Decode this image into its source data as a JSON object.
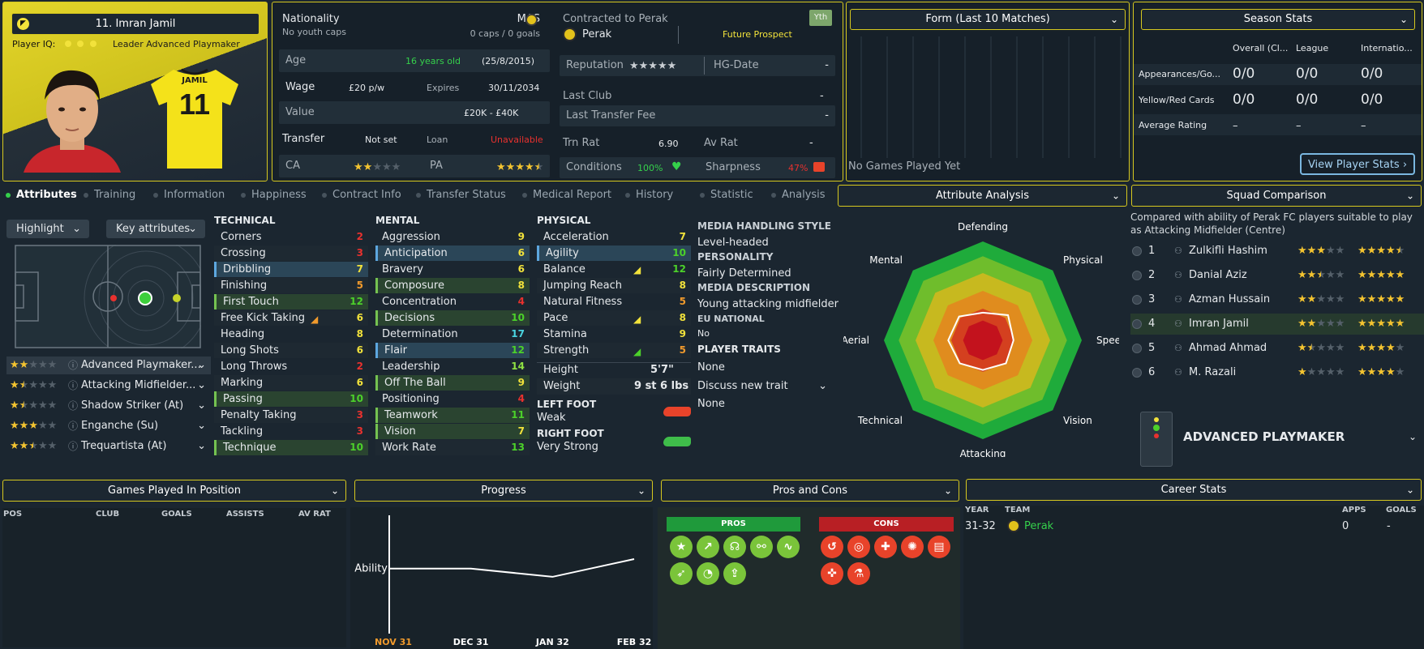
{
  "player": {
    "number_name": "11. Imran Jamil",
    "player_iq_label": "Player IQ:",
    "leader_label": "Leader",
    "role": "Advanced Playmaker",
    "shirt_name": "JAMIL",
    "shirt_number": "11"
  },
  "info": {
    "nationality_label": "Nationality",
    "nationality_value": "MAS",
    "youth_caps": "No youth caps",
    "caps_goals": "0 caps / 0 goals",
    "age_label": "Age",
    "age_value": "16 years old",
    "dob": "(25/8/2015)",
    "wage_label": "Wage",
    "wage_value": "£20 p/w",
    "expires_label": "Expires",
    "expires_value": "30/11/2034",
    "value_label": "Value",
    "value_value": "£20K - £40K",
    "transfer_label": "Transfer",
    "transfer_value": "Not set",
    "loan_label": "Loan",
    "loan_value": "Unavailable",
    "ca_label": "CA",
    "pa_label": "PA",
    "ca_stars": 2,
    "pa_stars": 4.5
  },
  "contract": {
    "contracted_label": "Contracted to Perak",
    "club": "Perak",
    "yth_badge": "Yth",
    "status": "Future Prospect",
    "reputation_label": "Reputation",
    "hg_label": "HG-Date",
    "hg_value": "-",
    "last_club_label": "Last Club",
    "last_club_value": "-",
    "last_fee_label": "Last Transfer Fee",
    "last_fee_value": "-",
    "trn_rat_label": "Trn Rat",
    "trn_rat_value": "6.90",
    "av_rat_label": "Av Rat",
    "av_rat_value": "-",
    "conditions_label": "Conditions",
    "conditions_value": "100%",
    "sharpness_label": "Sharpness",
    "sharpness_value": "47%"
  },
  "form": {
    "title": "Form (Last 10 Matches)",
    "empty": "No Games Played Yet"
  },
  "season": {
    "title": "Season Stats",
    "headers": [
      "Overall (Cl...",
      "League",
      "Internatio..."
    ],
    "rows": [
      {
        "label": "Appearances/Go...",
        "values": [
          "0/0",
          "0/0",
          "0/0"
        ]
      },
      {
        "label": "Yellow/Red Cards",
        "values": [
          "0/0",
          "0/0",
          "0/0"
        ]
      },
      {
        "label": "Average Rating",
        "values": [
          "–",
          "–",
          "–"
        ]
      }
    ],
    "button": "View Player Stats"
  },
  "tabs": [
    "Attributes",
    "Training",
    "Information",
    "Happiness",
    "Contract Info",
    "Transfer Status",
    "Medical Report",
    "History",
    "Statistic",
    "Analysis"
  ],
  "controls": {
    "highlight": "Highlight",
    "key_attributes": "Key attributes"
  },
  "roles": [
    {
      "name": "Advanced Playmaker...",
      "stars": 2
    },
    {
      "name": "Attacking Midfielder...",
      "stars": 1.5
    },
    {
      "name": "Shadow Striker (At)",
      "stars": 1.5
    },
    {
      "name": "Enganche (Su)",
      "stars": 3
    },
    {
      "name": "Trequartista (At)",
      "stars": 2.5
    }
  ],
  "technical": {
    "title": "TECHNICAL",
    "items": [
      {
        "name": "Corners",
        "value": "2"
      },
      {
        "name": "Crossing",
        "value": "3"
      },
      {
        "name": "Dribbling",
        "value": "7"
      },
      {
        "name": "Finishing",
        "value": "5"
      },
      {
        "name": "First Touch",
        "value": "12"
      },
      {
        "name": "Free Kick Taking",
        "value": "6"
      },
      {
        "name": "Heading",
        "value": "8"
      },
      {
        "name": "Long Shots",
        "value": "6"
      },
      {
        "name": "Long Throws",
        "value": "2"
      },
      {
        "name": "Marking",
        "value": "6"
      },
      {
        "name": "Passing",
        "value": "10"
      },
      {
        "name": "Penalty Taking",
        "value": "3"
      },
      {
        "name": "Tackling",
        "value": "3"
      },
      {
        "name": "Technique",
        "value": "10"
      }
    ]
  },
  "mental": {
    "title": "MENTAL",
    "items": [
      {
        "name": "Aggression",
        "value": "9"
      },
      {
        "name": "Anticipation",
        "value": "6"
      },
      {
        "name": "Bravery",
        "value": "6"
      },
      {
        "name": "Composure",
        "value": "8"
      },
      {
        "name": "Concentration",
        "value": "4"
      },
      {
        "name": "Decisions",
        "value": "10"
      },
      {
        "name": "Determination",
        "value": "17"
      },
      {
        "name": "Flair",
        "value": "12"
      },
      {
        "name": "Leadership",
        "value": "14"
      },
      {
        "name": "Off The Ball",
        "value": "9"
      },
      {
        "name": "Positioning",
        "value": "4"
      },
      {
        "name": "Teamwork",
        "value": "11"
      },
      {
        "name": "Vision",
        "value": "7"
      },
      {
        "name": "Work Rate",
        "value": "13"
      }
    ]
  },
  "physical": {
    "title": "PHYSICAL",
    "items": [
      {
        "name": "Acceleration",
        "value": "7"
      },
      {
        "name": "Agility",
        "value": "10"
      },
      {
        "name": "Balance",
        "value": "12"
      },
      {
        "name": "Jumping Reach",
        "value": "8"
      },
      {
        "name": "Natural Fitness",
        "value": "5"
      },
      {
        "name": "Pace",
        "value": "8"
      },
      {
        "name": "Stamina",
        "value": "9"
      },
      {
        "name": "Strength",
        "value": "5"
      }
    ],
    "height_label": "Height",
    "height_value": "5'7\"",
    "weight_label": "Weight",
    "weight_value": "9 st 6 lbs",
    "left_foot_label": "LEFT FOOT",
    "left_foot_value": "Weak",
    "right_foot_label": "RIGHT FOOT",
    "right_foot_value": "Very Strong"
  },
  "media": {
    "style_label": "MEDIA HANDLING STYLE",
    "style_value": "Level-headed",
    "personality_label": "PERSONALITY",
    "personality_value": "Fairly Determined",
    "description_label": "MEDIA DESCRIPTION",
    "description_value": "Young attacking midfielder",
    "eu_label": "EU NATIONAL",
    "eu_value": "No",
    "traits_label": "PLAYER TRAITS",
    "traits_value": "None",
    "discuss_label": "Discuss new trait",
    "discuss_value": "None"
  },
  "analysis": {
    "title": "Attribute Analysis",
    "axes": [
      "Defending",
      "Physical",
      "Speed",
      "Vision",
      "Attacking",
      "Technical",
      "Aerial",
      "Mental"
    ],
    "values": [
      0.28,
      0.36,
      0.31,
      0.33,
      0.3,
      0.33,
      0.35,
      0.34
    ]
  },
  "squad": {
    "title": "Squad Comparison",
    "subtitle": "Compared with ability of Perak FC players suitable to play as Attacking Midfielder (Centre)",
    "rows": [
      {
        "rank": "1",
        "name": "Zulkifli Hashim",
        "ca": 3,
        "pa": 4.5
      },
      {
        "rank": "2",
        "name": "Danial Aziz",
        "ca": 2.5,
        "pa": 5
      },
      {
        "rank": "3",
        "name": "Azman Hussain",
        "ca": 2,
        "pa": 5
      },
      {
        "rank": "4",
        "name": "Imran Jamil",
        "ca": 2,
        "pa": 5
      },
      {
        "rank": "5",
        "name": "Ahmad Ahmad",
        "ca": 1.5,
        "pa": 4
      },
      {
        "rank": "6",
        "name": "M. Razali",
        "ca": 1,
        "pa": 4
      }
    ],
    "role_label": "ADVANCED PLAYMAKER"
  },
  "games_position": {
    "title": "Games Played In Position",
    "headers": [
      "POS",
      "CLUB",
      "GOALS",
      "ASSISTS",
      "AV RAT"
    ]
  },
  "progress": {
    "title": "Progress",
    "y_label": "Ability",
    "x_labels": [
      "NOV 31",
      "DEC 31",
      "JAN 32",
      "FEB 32"
    ]
  },
  "chart_data": {
    "type": "line",
    "title": "Progress",
    "ylabel": "Ability",
    "categories": [
      "NOV 31",
      "DEC 31",
      "JAN 32",
      "FEB 32"
    ],
    "values": [
      0.55,
      0.55,
      0.48,
      0.63
    ],
    "ylim": [
      0,
      1
    ]
  },
  "pros_cons": {
    "title": "Pros and Cons",
    "pros_label": "PROS",
    "cons_label": "CONS",
    "pros_icons": [
      "star-icon",
      "trend-up-icon",
      "brain-icon",
      "link-icon",
      "pulse-icon",
      "feather-icon",
      "boot-icon",
      "rocket-icon"
    ],
    "cons_icons": [
      "curve-ball-icon",
      "target-icon",
      "cross-icon",
      "burst-icon",
      "document-icon",
      "shield-plus-icon",
      "flask-icon"
    ],
    "colors": {
      "pros": "#7ac43a",
      "cons": "#e8432a"
    }
  },
  "career": {
    "title": "Career Stats",
    "headers": [
      "YEAR",
      "TEAM",
      "APPS",
      "GOALS"
    ],
    "rows": [
      {
        "year": "31-32",
        "team": "Perak",
        "apps": "0",
        "goals": "-"
      }
    ]
  }
}
